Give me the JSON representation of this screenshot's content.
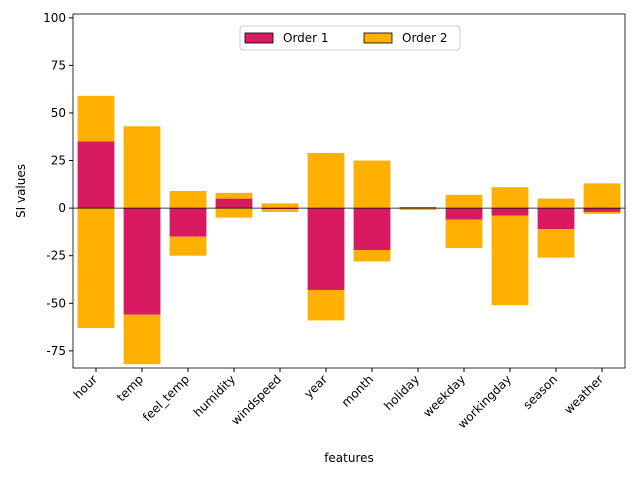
{
  "chart_data": {
    "type": "bar",
    "xlabel": "features",
    "ylabel": "SI values",
    "categories": [
      "hour",
      "temp",
      "feel_temp",
      "humidity",
      "windspeed",
      "year",
      "month",
      "holiday",
      "weekday",
      "workingday",
      "season",
      "weather"
    ],
    "series": [
      {
        "name": "Order 1",
        "color": "#d81b60",
        "values": [
          35,
          -56,
          -15,
          5,
          -0.5,
          -43,
          -22,
          0.5,
          -6,
          -4,
          -11,
          -2
        ]
      },
      {
        "name": "Order 2",
        "color": "#ffb000",
        "values": [
          24,
          43,
          9,
          3,
          2.5,
          29,
          25,
          0,
          7,
          11,
          5,
          13
        ],
        "negative_values": [
          -63,
          -26,
          -10,
          -5,
          -1.5,
          -16,
          -6,
          -1,
          -15,
          -47,
          -15,
          -1
        ]
      }
    ],
    "ylim": [
      -84,
      102
    ],
    "yticks": [
      -75,
      -50,
      -25,
      0,
      25,
      50,
      75,
      100
    ],
    "legend": "upper center"
  }
}
